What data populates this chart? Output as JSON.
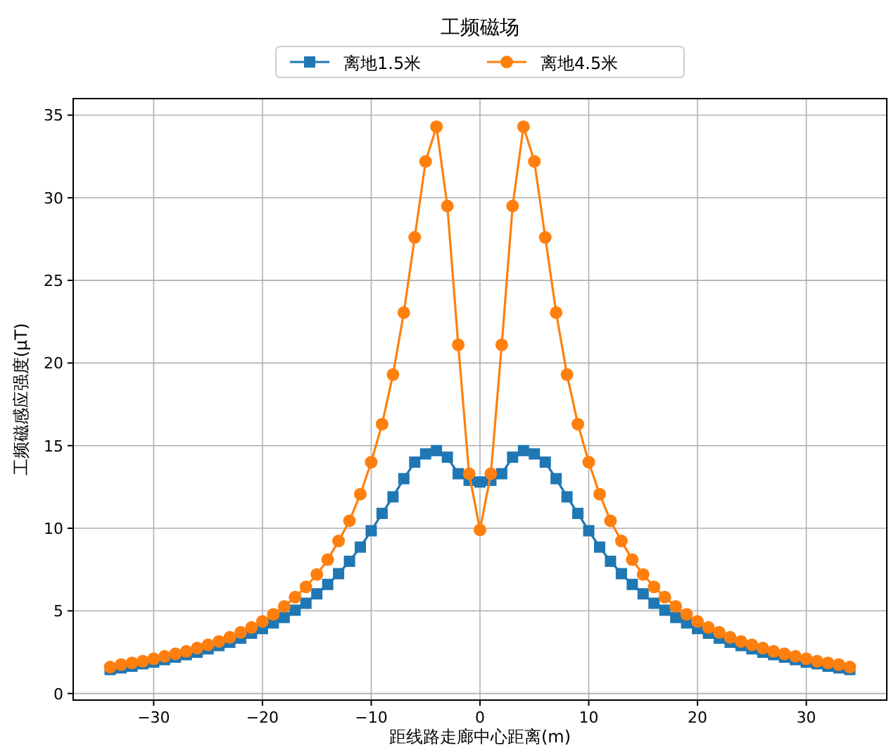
{
  "chart_data": {
    "type": "line",
    "title": "工频磁场",
    "xlabel": "距线路走廊中心距离(m)",
    "ylabel": "工频磁感应强度(μT)",
    "x": [
      -34,
      -33,
      -32,
      -31,
      -30,
      -29,
      -28,
      -27,
      -26,
      -25,
      -24,
      -23,
      -22,
      -21,
      -20,
      -19,
      -18,
      -17,
      -16,
      -15,
      -14,
      -13,
      -12,
      -11,
      -10,
      -9,
      -8,
      -7,
      -6,
      -5,
      -4,
      -3,
      -2,
      -1,
      0,
      1,
      2,
      3,
      4,
      5,
      6,
      7,
      8,
      9,
      10,
      11,
      12,
      13,
      14,
      15,
      16,
      17,
      18,
      19,
      20,
      21,
      22,
      23,
      24,
      25,
      26,
      27,
      28,
      29,
      30,
      31,
      32,
      33,
      34
    ],
    "series": [
      {
        "name": "离地1.5米",
        "color": "#1f77b4",
        "marker": "square",
        "values": [
          1.45,
          1.55,
          1.65,
          1.8,
          1.9,
          2.05,
          2.2,
          2.35,
          2.5,
          2.7,
          2.9,
          3.1,
          3.35,
          3.65,
          3.93,
          4.27,
          4.6,
          5.04,
          5.46,
          6.03,
          6.6,
          7.25,
          8.0,
          8.86,
          9.85,
          10.9,
          11.9,
          13.0,
          14.0,
          14.5,
          14.7,
          14.3,
          13.3,
          12.9,
          12.8,
          12.9,
          13.3,
          14.3,
          14.7,
          14.5,
          14.0,
          13.0,
          11.9,
          10.9,
          9.85,
          8.86,
          8.0,
          7.25,
          6.6,
          6.03,
          5.46,
          5.04,
          4.6,
          4.27,
          3.93,
          3.65,
          3.35,
          3.1,
          2.9,
          2.7,
          2.5,
          2.35,
          2.2,
          2.05,
          1.9,
          1.8,
          1.65,
          1.55,
          1.45
        ]
      },
      {
        "name": "离地4.5米",
        "color": "#ff7f0e",
        "marker": "circle",
        "values": [
          1.6,
          1.75,
          1.85,
          1.95,
          2.1,
          2.25,
          2.4,
          2.55,
          2.75,
          2.95,
          3.15,
          3.4,
          3.7,
          4.0,
          4.36,
          4.79,
          5.27,
          5.83,
          6.45,
          7.2,
          8.1,
          9.23,
          10.45,
          12.06,
          14.0,
          16.3,
          19.3,
          23.05,
          27.6,
          32.2,
          34.3,
          29.5,
          21.1,
          13.3,
          9.9,
          13.3,
          21.1,
          29.5,
          34.3,
          32.2,
          27.6,
          23.05,
          19.3,
          16.3,
          14.0,
          12.06,
          10.45,
          9.23,
          8.1,
          7.2,
          6.45,
          5.83,
          5.27,
          4.79,
          4.36,
          4.0,
          3.7,
          3.4,
          3.15,
          2.95,
          2.75,
          2.55,
          2.4,
          2.25,
          2.1,
          1.95,
          1.85,
          1.75,
          1.6
        ]
      }
    ],
    "xlim": [
      -37.4,
      37.4
    ],
    "ylim": [
      -0.4,
      36
    ],
    "xticks": [
      -30,
      -20,
      -10,
      0,
      10,
      20,
      30
    ],
    "yticks": [
      0,
      5,
      10,
      15,
      20,
      25,
      30,
      35
    ],
    "grid": true,
    "legend": "top",
    "line_style": "solid"
  }
}
